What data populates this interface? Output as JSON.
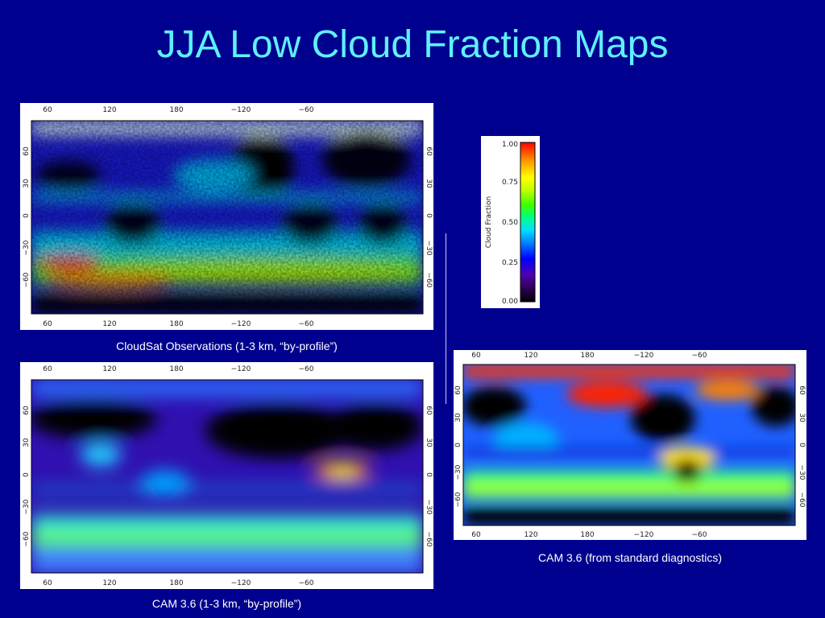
{
  "title": "JJA Low Cloud Fraction Maps",
  "lon_ticks": [
    "60",
    "120",
    "180",
    "−120",
    "−60"
  ],
  "lat_ticks": [
    "60",
    "30",
    "0",
    "−30",
    "−60"
  ],
  "maps": [
    {
      "id": "cloudsat",
      "caption": "CloudSat Observations (1-3 km, “by-profile”)"
    },
    {
      "id": "cam-profile",
      "caption": "CAM 3.6 (1-3 km, “by-profile”)"
    },
    {
      "id": "cam-standard",
      "caption": "CAM 3.6 (from standard diagnostics)"
    }
  ],
  "colorbar": {
    "label": "Cloud Fraction",
    "ticks": [
      "1.00",
      "0.75",
      "0.50",
      "0.25",
      "0.00"
    ],
    "colors": [
      "#000000",
      "#2b0050",
      "#5000b0",
      "#0000ff",
      "#0080ff",
      "#00e0ff",
      "#00ff80",
      "#40ff00",
      "#c0ff00",
      "#ffff00",
      "#ff9000",
      "#ff0000"
    ]
  }
}
